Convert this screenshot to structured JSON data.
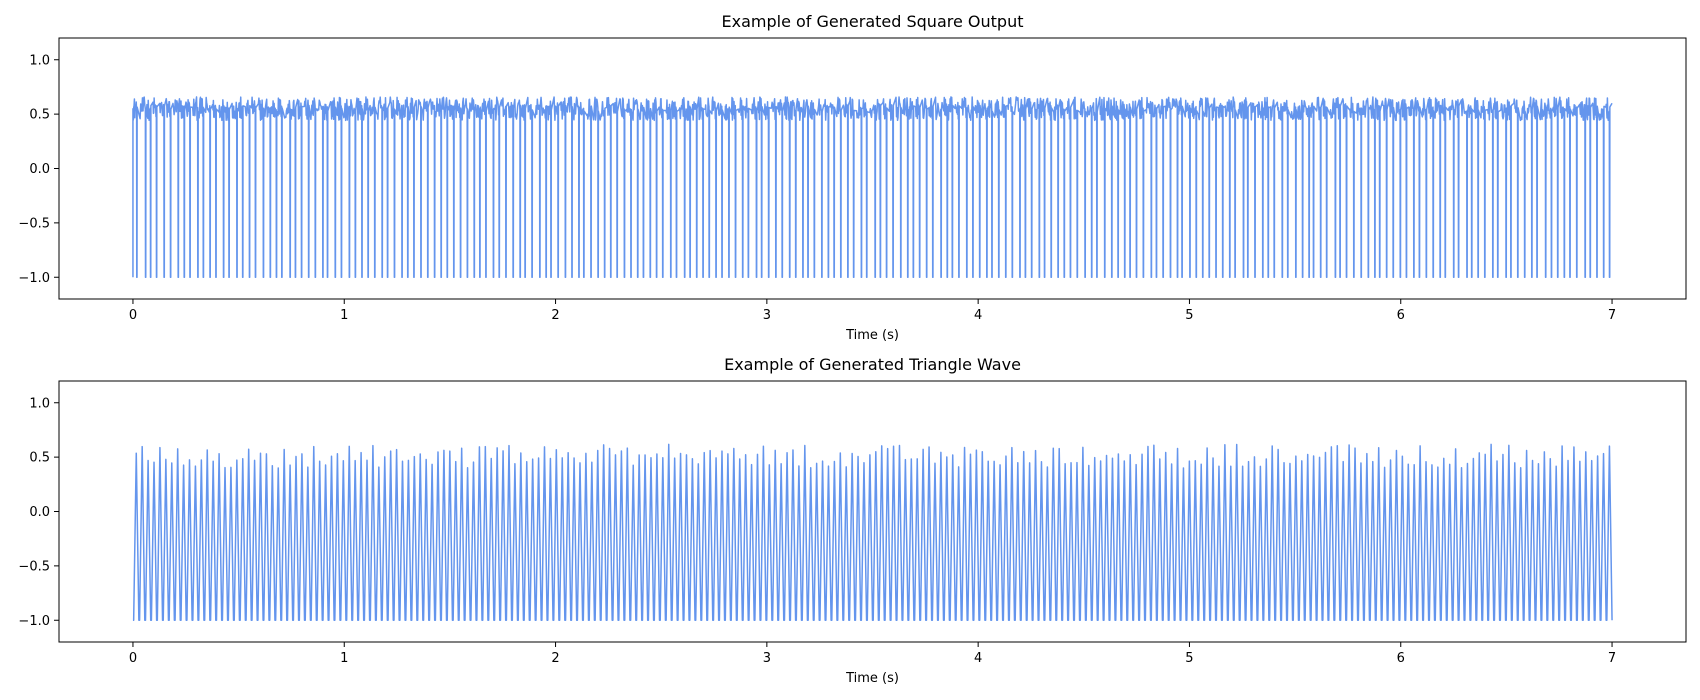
{
  "chart_data": [
    {
      "type": "line",
      "title": "Example of Generated Square Output",
      "xlabel": "Time (s)",
      "ylabel": "",
      "xlim": [
        -0.35,
        7.35
      ],
      "ylim": [
        -1.2,
        1.2
      ],
      "xticks": [
        0,
        1,
        2,
        3,
        4,
        5,
        6,
        7
      ],
      "yticks": [
        -1.0,
        -0.5,
        0.0,
        0.5,
        1.0
      ],
      "grid": false,
      "legend": "none",
      "series": [
        {
          "color": "#6495ED",
          "waveform": "square",
          "x_range": [
            0,
            7
          ],
          "pulse_count": 225,
          "high_level": 0.55,
          "high_noise": 0.06,
          "low_level": -1.0
        }
      ]
    },
    {
      "type": "line",
      "title": "Example of Generated Triangle Wave",
      "xlabel": "Time (s)",
      "ylabel": "",
      "xlim": [
        -0.35,
        7.35
      ],
      "ylim": [
        -1.2,
        1.2
      ],
      "xticks": [
        0,
        1,
        2,
        3,
        4,
        5,
        6,
        7
      ],
      "yticks": [
        -1.0,
        -0.5,
        0.0,
        0.5,
        1.0
      ],
      "grid": false,
      "legend": "none",
      "series": [
        {
          "color": "#6495ED",
          "waveform": "triangle",
          "x_range": [
            0,
            7
          ],
          "cycles": 250,
          "peak_min": 0.4,
          "peak_max": 0.62,
          "trough": -1.0
        }
      ]
    }
  ]
}
